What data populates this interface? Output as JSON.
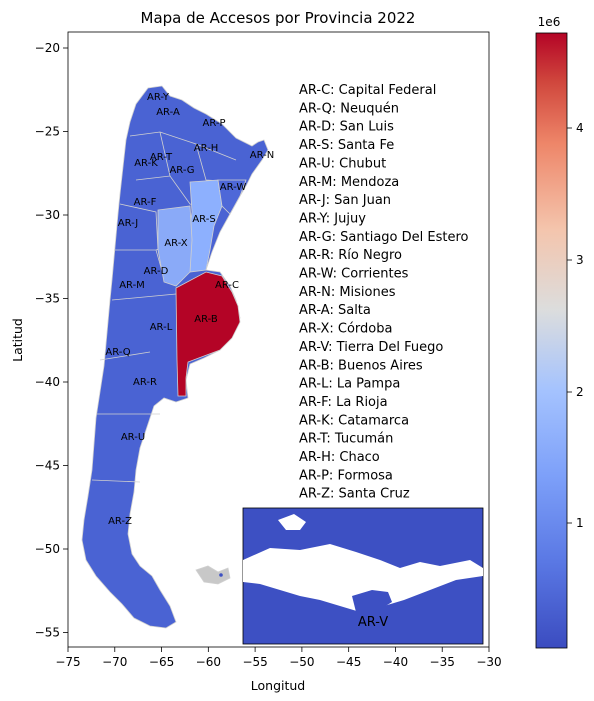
{
  "title": "Mapa de Accesos por Provincia 2022",
  "xlabel": "Longitud",
  "ylabel": "Latitud",
  "x_ticks": [
    "−75",
    "−70",
    "−65",
    "−60",
    "−55",
    "−50",
    "−45",
    "−40",
    "−35",
    "−30"
  ],
  "y_ticks": [
    "−20",
    "−25",
    "−30",
    "−35",
    "−40",
    "−45",
    "−50",
    "−55"
  ],
  "colorbar": {
    "exponent": "1e6",
    "ticks": [
      "1",
      "2",
      "3",
      "4"
    ],
    "colors": [
      "#3b4cc0",
      "#7396f5",
      "#b0cbfc",
      "#dddcdc",
      "#f6bfa6",
      "#ec8165",
      "#c53334",
      "#b40426"
    ]
  },
  "region_labels": [
    {
      "code": "AR-Y",
      "text": "AR-Y"
    },
    {
      "code": "AR-A",
      "text": "AR-A"
    },
    {
      "code": "AR-P",
      "text": "AR-P"
    },
    {
      "code": "AR-H",
      "text": "AR-H"
    },
    {
      "code": "AR-N",
      "text": "AR-N"
    },
    {
      "code": "AR-T",
      "text": "AR-T"
    },
    {
      "code": "AR-K",
      "text": "AR-K"
    },
    {
      "code": "AR-G",
      "text": "AR-G"
    },
    {
      "code": "AR-W",
      "text": "AR-W"
    },
    {
      "code": "AR-F",
      "text": "AR-F"
    },
    {
      "code": "AR-J",
      "text": "AR-J"
    },
    {
      "code": "AR-S",
      "text": "AR-S"
    },
    {
      "code": "AR-X",
      "text": "AR-X"
    },
    {
      "code": "AR-D",
      "text": "AR-D"
    },
    {
      "code": "AR-M",
      "text": "AR-M"
    },
    {
      "code": "AR-C",
      "text": "AR-C"
    },
    {
      "code": "AR-B",
      "text": "AR-B"
    },
    {
      "code": "AR-L",
      "text": "AR-L"
    },
    {
      "code": "AR-Q",
      "text": "AR-Q"
    },
    {
      "code": "AR-R",
      "text": "AR-R"
    },
    {
      "code": "AR-U",
      "text": "AR-U"
    },
    {
      "code": "AR-Z",
      "text": "AR-Z"
    }
  ],
  "legend_lines": [
    "AR-C: Capital Federal",
    "AR-Q: Neuquén",
    "AR-D: San Luis",
    "AR-S: Santa Fe",
    "AR-U: Chubut",
    "AR-M: Mendoza",
    "AR-J: San Juan",
    "AR-Y: Jujuy",
    "AR-G: Santiago Del Estero",
    "AR-R: Río Negro",
    "AR-W: Corrientes",
    "AR-N: Misiones",
    "AR-A: Salta",
    "AR-X: Córdoba",
    "AR-V: Tierra Del Fuego",
    "AR-B: Buenos Aires",
    "AR-L: La Pampa",
    "AR-F: La Rioja",
    "AR-K: Catamarca",
    "AR-T: Tucumán",
    "AR-H: Chaco",
    "AR-P: Formosa",
    "AR-Z: Santa Cruz"
  ],
  "inset_label": "AR-V",
  "colors": {
    "base": "#4a63d3",
    "deep": "#3d50c3",
    "light": "#8db0fe",
    "mid": "#7b9ff9",
    "red": "#b40426",
    "border": "#d0d0d0"
  }
}
